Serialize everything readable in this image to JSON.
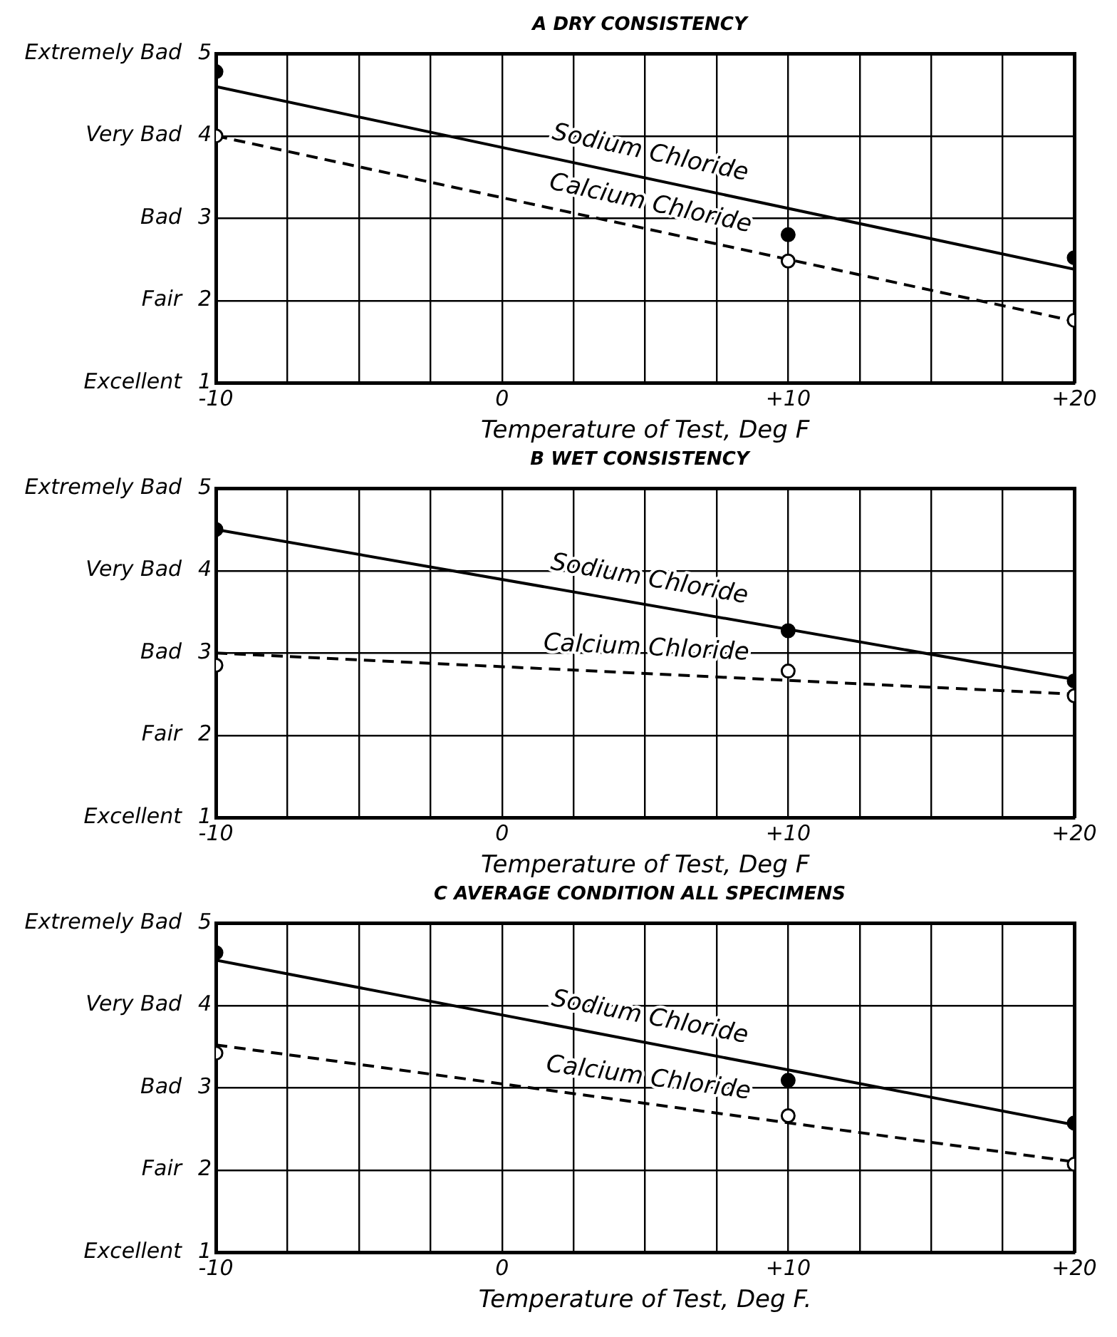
{
  "chart_data": [
    {
      "type": "line",
      "title": "A DRY CONSISTENCY",
      "xlabel": "Temperature of Test, Deg F",
      "xlim": [
        -10,
        20
      ],
      "ylim": [
        1,
        5
      ],
      "grid": true,
      "annotations": [
        "Excellent",
        "Fair",
        "Bad",
        "Very Bad",
        "Extremely Bad"
      ],
      "xticks": [
        {
          "value": -10,
          "label": "-10"
        },
        {
          "value": -7.5,
          "label": null
        },
        {
          "value": -5,
          "label": null
        },
        {
          "value": -2.5,
          "label": null
        },
        {
          "value": 0,
          "label": "0"
        },
        {
          "value": 2.5,
          "label": null
        },
        {
          "value": 5,
          "label": null
        },
        {
          "value": 7.5,
          "label": null
        },
        {
          "value": 10,
          "label": "+10"
        },
        {
          "value": 12.5,
          "label": null
        },
        {
          "value": 15,
          "label": null
        },
        {
          "value": 17.5,
          "label": null
        },
        {
          "value": 20,
          "label": "+20"
        }
      ],
      "yticks": [
        1,
        2,
        3,
        4,
        5
      ],
      "series": [
        {
          "name": "Sodium Chloride",
          "type": "line",
          "color": "#000000",
          "line_style": "solid",
          "marker": "none",
          "x": [
            -10,
            20
          ],
          "values": [
            4.6,
            2.38
          ]
        },
        {
          "name": "Calcium Chloride",
          "type": "line",
          "color": "#000000",
          "line_style": "dashed",
          "marker": "none",
          "x": [
            -10,
            20
          ],
          "values": [
            4.0,
            1.75
          ]
        },
        {
          "type": "scatter",
          "color": "#000000",
          "marker": "circle",
          "x": [
            -10,
            10,
            20
          ],
          "values": [
            4.78,
            2.8,
            2.52
          ]
        },
        {
          "type": "scatter",
          "color": "#000000",
          "marker": "circle",
          "x": [
            -10,
            10,
            20
          ],
          "values": [
            4.0,
            2.48,
            1.76
          ]
        }
      ]
    },
    {
      "type": "line",
      "title": "B WET CONSISTENCY",
      "xlabel": "Temperature of Test, Deg F",
      "xlim": [
        -10,
        20
      ],
      "ylim": [
        1,
        5
      ],
      "grid": true,
      "annotations": [
        "Excellent",
        "Fair",
        "Bad",
        "Very Bad",
        "Extremely Bad"
      ],
      "xticks": [
        {
          "value": -10,
          "label": "-10"
        },
        {
          "value": -7.5,
          "label": null
        },
        {
          "value": -5,
          "label": null
        },
        {
          "value": -2.5,
          "label": null
        },
        {
          "value": 0,
          "label": "0"
        },
        {
          "value": 2.5,
          "label": null
        },
        {
          "value": 5,
          "label": null
        },
        {
          "value": 7.5,
          "label": null
        },
        {
          "value": 10,
          "label": "+10"
        },
        {
          "value": 12.5,
          "label": null
        },
        {
          "value": 15,
          "label": null
        },
        {
          "value": 17.5,
          "label": null
        },
        {
          "value": 20,
          "label": "+20"
        }
      ],
      "yticks": [
        1,
        2,
        3,
        4,
        5
      ],
      "series": [
        {
          "name": "Sodium Chloride",
          "type": "line",
          "color": "#000000",
          "line_style": "solid",
          "marker": "none",
          "x": [
            -10,
            20
          ],
          "values": [
            4.5,
            2.68
          ]
        },
        {
          "name": "Calcium Chloride",
          "type": "line",
          "color": "#000000",
          "line_style": "dashed",
          "marker": "none",
          "x": [
            -10,
            20
          ],
          "values": [
            3.0,
            2.5
          ]
        },
        {
          "type": "scatter",
          "color": "#000000",
          "marker": "circle",
          "x": [
            -10,
            10,
            20
          ],
          "values": [
            4.5,
            3.27,
            2.66
          ]
        },
        {
          "type": "scatter",
          "color": "#000000",
          "marker": "circle",
          "x": [
            -10,
            10,
            20
          ],
          "values": [
            2.85,
            2.78,
            2.48
          ]
        }
      ]
    },
    {
      "type": "line",
      "title": "C AVERAGE CONDITION ALL SPECIMENS",
      "xlabel": "Temperature of Test, Deg F.",
      "xlim": [
        -10,
        20
      ],
      "ylim": [
        1,
        5
      ],
      "grid": true,
      "annotations": [
        "Excellent",
        "Fair",
        "Bad",
        "Very Bad",
        "Extremely Bad"
      ],
      "xticks": [
        {
          "value": -10,
          "label": "-10"
        },
        {
          "value": -7.5,
          "label": null
        },
        {
          "value": -5,
          "label": null
        },
        {
          "value": -2.5,
          "label": null
        },
        {
          "value": 0,
          "label": "0"
        },
        {
          "value": 2.5,
          "label": null
        },
        {
          "value": 5,
          "label": null
        },
        {
          "value": 7.5,
          "label": null
        },
        {
          "value": 10,
          "label": "+10"
        },
        {
          "value": 12.5,
          "label": null
        },
        {
          "value": 15,
          "label": null
        },
        {
          "value": 17.5,
          "label": null
        },
        {
          "value": 20,
          "label": "+20"
        }
      ],
      "yticks": [
        1,
        2,
        3,
        4,
        5
      ],
      "series": [
        {
          "name": "Sodium Chloride",
          "type": "line",
          "color": "#000000",
          "line_style": "solid",
          "marker": "none",
          "x": [
            -10,
            20
          ],
          "values": [
            4.55,
            2.55
          ]
        },
        {
          "name": "Calcium Chloride",
          "type": "line",
          "color": "#000000",
          "line_style": "dashed",
          "marker": "none",
          "x": [
            -10,
            20
          ],
          "values": [
            3.52,
            2.1
          ]
        },
        {
          "type": "scatter",
          "color": "#000000",
          "marker": "circle",
          "x": [
            -10,
            10,
            20
          ],
          "values": [
            4.64,
            3.09,
            2.57
          ]
        },
        {
          "type": "scatter",
          "color": "#000000",
          "marker": "circle",
          "x": [
            -10,
            10,
            20
          ],
          "values": [
            3.42,
            2.66,
            2.07
          ]
        }
      ]
    }
  ]
}
